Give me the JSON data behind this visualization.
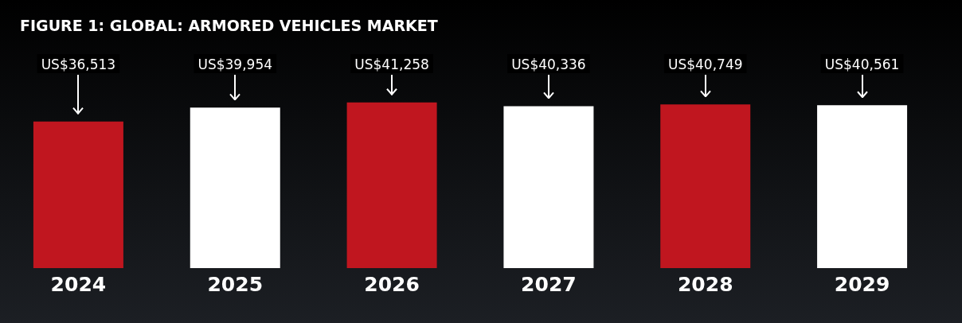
{
  "chart_data": {
    "type": "bar",
    "title": "FIGURE 1: GLOBAL: ARMORED VEHICLES MARKET",
    "categories": [
      "2024",
      "2025",
      "2026",
      "2027",
      "2028",
      "2029"
    ],
    "values": [
      36513,
      39954,
      41258,
      40336,
      40749,
      40561
    ],
    "colors": [
      "#c0161f",
      "#ffffff",
      "#c0161f",
      "#ffffff",
      "#c0161f",
      "#ffffff"
    ],
    "value_labels": [
      "US$36,513",
      "US$39,954",
      "US$41,258",
      "US$40,336",
      "US$40,749",
      "US$40,561"
    ]
  }
}
